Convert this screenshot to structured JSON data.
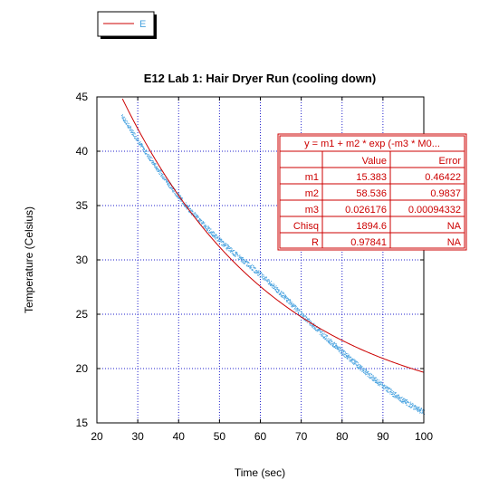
{
  "chart_data": {
    "type": "scatter",
    "title": "E12 Lab 1: Hair Dryer Run (cooling down)",
    "xlabel": "Time (sec)",
    "ylabel": "Temperature (Celsius)",
    "xlim": [
      20,
      100
    ],
    "ylim": [
      15,
      45
    ],
    "xticks": [
      20,
      30,
      40,
      50,
      60,
      70,
      80,
      90,
      100
    ],
    "yticks": [
      15,
      20,
      25,
      30,
      35,
      40,
      45
    ],
    "grid": true,
    "legend": {
      "placement": "top-left",
      "entries": [
        {
          "label": "E",
          "color": "#cc0000"
        }
      ]
    },
    "series": [
      {
        "kind": "scatter",
        "color": "#4aa3df",
        "x": [
          26,
          30,
          34,
          38,
          42,
          46,
          50,
          54,
          58,
          62,
          66,
          70,
          74,
          78,
          82,
          86,
          90,
          94,
          98,
          100
        ],
        "y": [
          43.3,
          41.0,
          38.8,
          36.8,
          34.9,
          33.3,
          31.8,
          30.5,
          29.3,
          28.0,
          26.6,
          25.0,
          23.6,
          22.2,
          20.9,
          19.6,
          18.4,
          17.3,
          16.4,
          16.0
        ]
      }
    ],
    "fit": {
      "color": "#cc0000",
      "x_range": [
        25,
        100
      ],
      "params": {
        "m1": 15.383,
        "m2": 58.536,
        "m3": 0.026176
      }
    },
    "fit_table": {
      "header": "y = m1 + m2 * exp (-m3 * M0...",
      "columns": [
        "",
        "Value",
        "Error"
      ],
      "rows": [
        [
          "m1",
          "15.383",
          "0.46422"
        ],
        [
          "m2",
          "58.536",
          "0.9837"
        ],
        [
          "m3",
          "0.026176",
          "0.00094332"
        ],
        [
          "Chisq",
          "1894.6",
          "NA"
        ],
        [
          "R",
          "0.97841",
          "NA"
        ]
      ]
    }
  }
}
